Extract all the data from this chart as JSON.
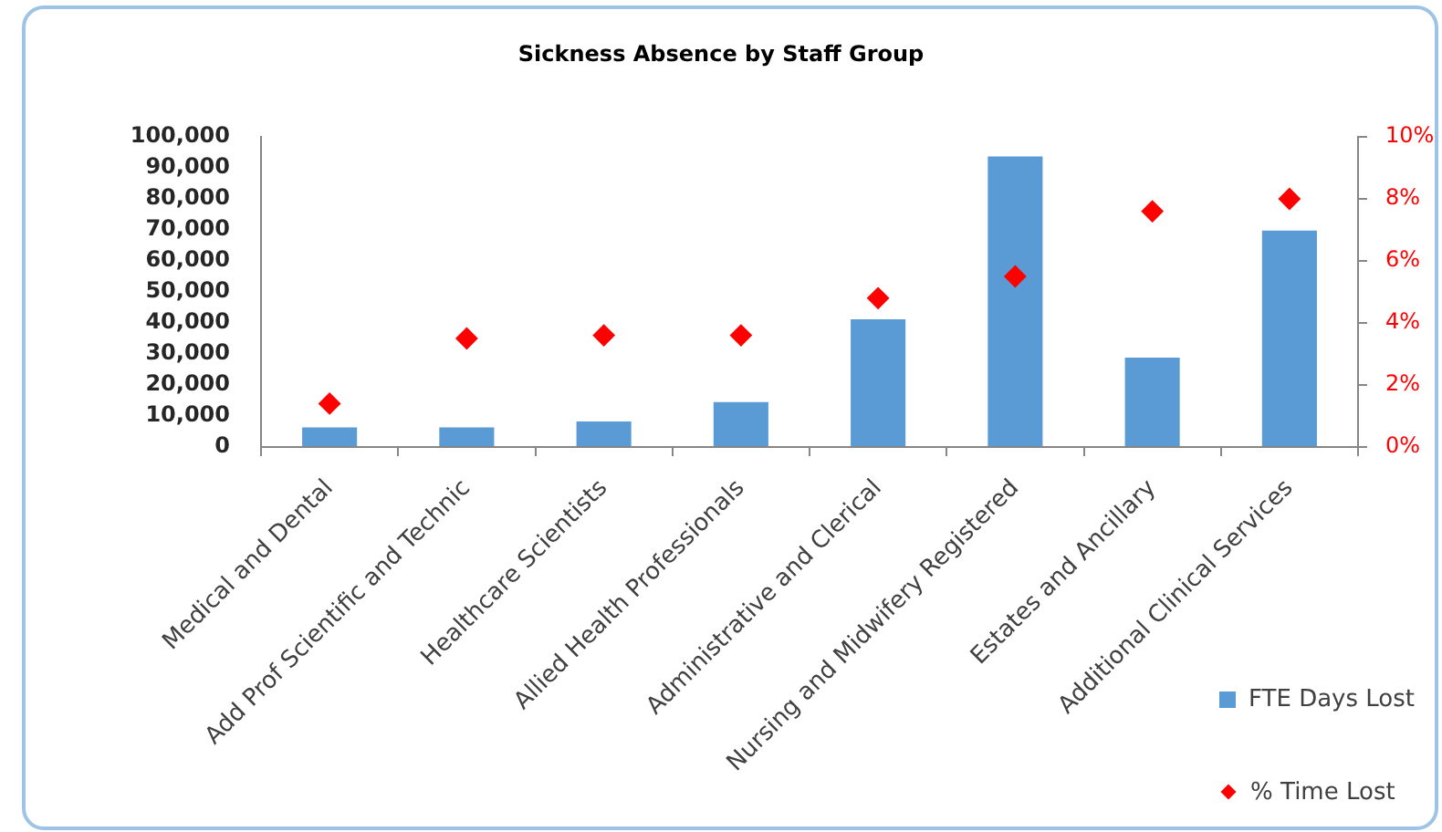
{
  "chart_data": {
    "type": "bar",
    "title": "Sickness Absence by Staff Group",
    "categories": [
      "Medical and Dental",
      "Add Prof Scientific and Technic",
      "Healthcare Scientists",
      "Allied Health Professionals",
      "Administrative and Clerical",
      "Nursing and Midwifery Registered",
      "Estates and Ancillary",
      "Additional Clinical Services"
    ],
    "series": [
      {
        "name": "FTE Days Lost",
        "color": "#5b9bd5",
        "values": [
          6300,
          6300,
          8200,
          14500,
          41200,
          93700,
          28800,
          69800
        ]
      },
      {
        "name": "% Time Lost",
        "type": "scatter",
        "axis": "y2",
        "color": "#ff0000",
        "marker": "diamond",
        "x": [
          "Medical and Dental",
          "Add Prof Scientific and Technic",
          "Healthcare Scientists",
          "Allied Health Professionals",
          "Administrative and Clerical",
          "Nursing and Midwifery Registered",
          "Estates and Ancillary",
          "Additional Clinical Services"
        ],
        "values": [
          1.4,
          3.5,
          3.6,
          3.6,
          4.8,
          5.5,
          7.6,
          8.0
        ]
      }
    ],
    "ylim": [
      0,
      100000
    ],
    "yticks": [
      0,
      {
        "value": 10000,
        "label": "10,000"
      },
      {
        "value": 20000,
        "label": "20,000"
      },
      {
        "value": 30000,
        "label": "30,000"
      },
      {
        "value": 40000,
        "label": "40,000"
      },
      {
        "value": 50000,
        "label": "50,000"
      },
      {
        "value": 60000,
        "label": "60,000"
      },
      {
        "value": 70000,
        "label": "70,000"
      },
      {
        "value": 80000,
        "label": "80,000"
      },
      {
        "value": 90000,
        "label": "90,000"
      },
      {
        "value": 100000,
        "label": "100,000"
      }
    ],
    "y2lim": [
      0,
      10
    ],
    "y2ticks": [
      {
        "value": 0,
        "label": "0%"
      },
      {
        "value": 2,
        "label": "2%"
      },
      {
        "value": 4,
        "label": "4%"
      },
      {
        "value": 6,
        "label": "6%"
      },
      {
        "value": 8,
        "label": "8%"
      },
      {
        "value": 10,
        "label": "10%"
      }
    ],
    "grid": false,
    "legend": "bottom right"
  }
}
